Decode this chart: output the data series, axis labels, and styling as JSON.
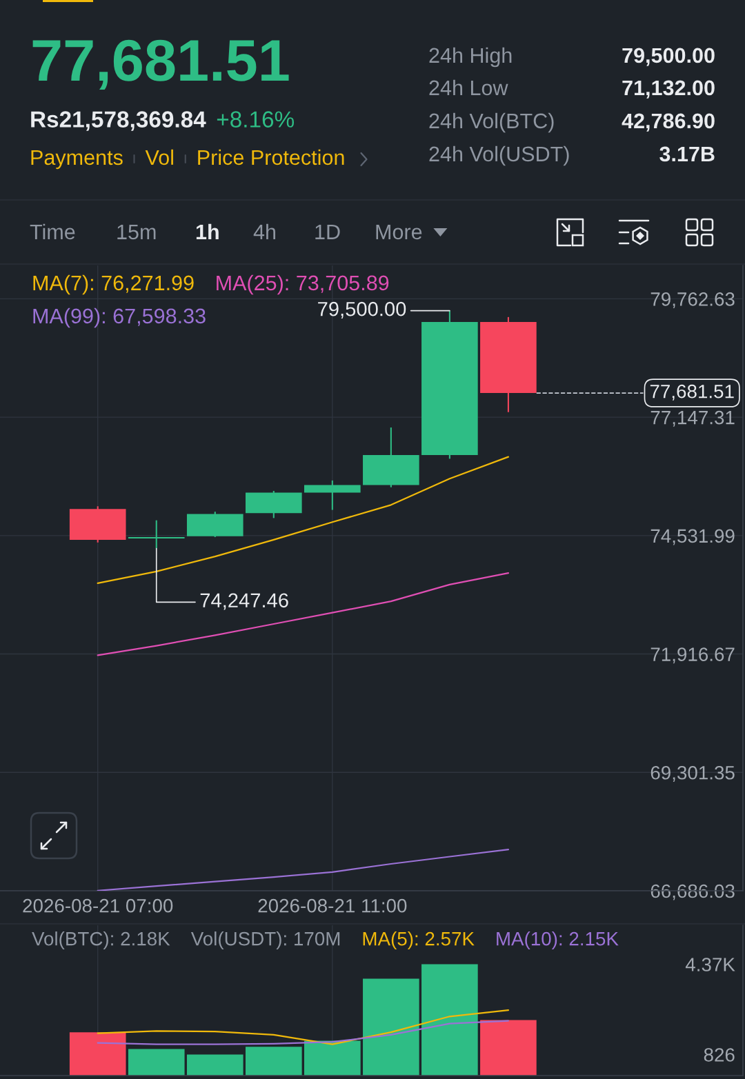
{
  "chart_data": [
    {
      "type": "other",
      "annotations": [
        "77,681.51",
        "Rs21,578,369.84",
        "+8.16%",
        "Payments",
        "Vol",
        "Price Protection",
        "24h High",
        "79,500.00",
        "24h Low",
        "71,132.00",
        "24h Vol(BTC)",
        "42,786.90",
        "24h Vol(USDT)",
        "3.17B",
        "Time",
        "15m",
        "1h",
        "4h",
        "1D",
        "More"
      ]
    },
    {
      "type": "candlestick",
      "x": [
        "2026-08-21T07:00",
        "2026-08-21T08:00",
        "2026-08-21T09:00",
        "2026-08-21T10:00",
        "2026-08-21T11:00",
        "2026-08-21T12:00",
        "2026-08-21T13:00",
        "2026-08-21T14:00"
      ],
      "ohlc": [
        [
          75120,
          75180,
          74380,
          74440
        ],
        [
          74470,
          74870,
          74247.46,
          74500
        ],
        [
          74520,
          75060,
          74500,
          75010
        ],
        [
          75030,
          75520,
          74920,
          75480
        ],
        [
          75480,
          75750,
          75100,
          75650
        ],
        [
          75650,
          76920,
          75600,
          76310
        ],
        [
          76310,
          79500,
          76230,
          79250
        ],
        [
          79250,
          79360,
          77260,
          77681.51
        ]
      ],
      "colors": [
        "#f6465d",
        "#2ebd85",
        "#2ebd85",
        "#2ebd85",
        "#2ebd85",
        "#2ebd85",
        "#2ebd85",
        "#f6465d"
      ],
      "series": [
        {
          "type": "line",
          "name": "MA(7): 76,271.99",
          "color": "#f0b90b",
          "values": [
            73480,
            73740,
            74070,
            74440,
            74830,
            75210,
            75790,
            76271.99
          ]
        },
        {
          "type": "line",
          "name": "MA(25): 73,705.89",
          "color": "#e04fb4",
          "values": [
            71890,
            72100,
            72330,
            72580,
            72830,
            73080,
            73450,
            73705.89
          ]
        },
        {
          "type": "line",
          "name": "MA(99): 67,598.33",
          "color": "#9b72d6",
          "values": [
            66690,
            66790,
            66890,
            66990,
            67100,
            67280,
            67440,
            67598.33
          ]
        }
      ],
      "xlim": [
        "2026-08-21T05:20",
        "2026-08-21T18:00"
      ],
      "xticks": [
        {
          "value": "2026-08-21T07:00",
          "label": "2026-08-21 07:00"
        },
        {
          "value": "2026-08-21T11:00",
          "label": "2026-08-21 11:00"
        }
      ],
      "ylim": [
        66686.03,
        80500
      ],
      "yticks": [
        {
          "value": 66686.03,
          "label": "66,686.03"
        },
        {
          "value": 69301.35,
          "label": "69,301.35"
        },
        {
          "value": 71916.67,
          "label": "71,916.67"
        },
        {
          "value": 74531.99,
          "label": "74,531.99"
        },
        {
          "value": 77147.31,
          "label": "77,147.31"
        },
        {
          "value": 79762.63,
          "label": "79,762.63"
        }
      ],
      "grid": true,
      "legend": "top left",
      "annotations": [
        {
          "text": "79,500.00",
          "x": "2026-08-21T13:00",
          "y": 79500
        },
        {
          "text": "74,247.46",
          "x": "2026-08-21T08:00",
          "y": 74247.46
        }
      ],
      "ref_lines": [
        {
          "axis": "y",
          "value": 77681.51,
          "label": "77,681.51",
          "line_style": "dashed"
        }
      ]
    },
    {
      "type": "bar",
      "x": [
        "2026-08-21T07:00",
        "2026-08-21T08:00",
        "2026-08-21T09:00",
        "2026-08-21T10:00",
        "2026-08-21T11:00",
        "2026-08-21T12:00",
        "2026-08-21T13:00",
        "2026-08-21T14:00"
      ],
      "series": [
        {
          "colors": [
            "#f6465d",
            "#2ebd85",
            "#2ebd85",
            "#2ebd85",
            "#2ebd85",
            "#2ebd85",
            "#2ebd85",
            "#f6465d"
          ],
          "values": [
            1700,
            1040,
            826,
            1130,
            1370,
            3800,
            4370,
            2180
          ]
        },
        {
          "type": "line",
          "name": "MA(5): 2.57K",
          "color": "#f0b90b",
          "values": [
            1660,
            1750,
            1730,
            1600,
            1230,
            1700,
            2320,
            2570
          ]
        },
        {
          "type": "line",
          "name": "MA(10): 2.15K",
          "color": "#9b72d6",
          "values": [
            1280,
            1230,
            1230,
            1250,
            1320,
            1600,
            2040,
            2150
          ]
        }
      ],
      "xlim": [
        "2026-08-21T05:20",
        "2026-08-21T18:00"
      ],
      "xticks": [
        {
          "value": "2026-08-21T07:00",
          "label": null
        },
        {
          "value": "2026-08-21T11:00",
          "label": null
        }
      ],
      "ylim": [
        0,
        5900
      ],
      "yticks": [
        826,
        {
          "value": 4370,
          "label": "4.37K"
        }
      ],
      "grid": "x",
      "tick_labels": "y",
      "legend": "top",
      "annotations": [
        "Vol(BTC): 2.18K",
        "Vol(USDT): 170M"
      ]
    }
  ]
}
